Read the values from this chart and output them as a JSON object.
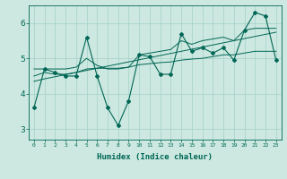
{
  "xlabel": "Humidex (Indice chaleur)",
  "bg_color": "#cce8e0",
  "grid_color": "#aad4cc",
  "line_color": "#006655",
  "x_values": [
    0,
    1,
    2,
    3,
    4,
    5,
    6,
    7,
    8,
    9,
    10,
    11,
    12,
    13,
    14,
    15,
    16,
    17,
    18,
    19,
    20,
    21,
    22,
    23
  ],
  "main_line": [
    3.6,
    4.7,
    4.6,
    4.5,
    4.5,
    5.6,
    4.5,
    3.6,
    3.1,
    3.8,
    5.1,
    5.05,
    4.55,
    4.55,
    5.7,
    5.2,
    5.3,
    5.15,
    5.3,
    4.95,
    5.8,
    6.3,
    6.2,
    4.95
  ],
  "upper_band": [
    4.7,
    4.7,
    4.7,
    4.7,
    4.75,
    5.0,
    4.8,
    4.7,
    4.7,
    4.75,
    5.1,
    5.15,
    5.2,
    5.25,
    5.5,
    5.4,
    5.5,
    5.55,
    5.6,
    5.5,
    5.8,
    5.85,
    5.85,
    5.85
  ],
  "lower_band": [
    4.5,
    4.6,
    4.55,
    4.55,
    4.6,
    4.7,
    4.72,
    4.72,
    4.72,
    4.75,
    4.82,
    4.85,
    4.88,
    4.9,
    4.95,
    4.98,
    5.0,
    5.05,
    5.1,
    5.1,
    5.15,
    5.2,
    5.2,
    5.2
  ],
  "regression": [
    4.35,
    4.42,
    4.48,
    4.54,
    4.6,
    4.66,
    4.72,
    4.78,
    4.84,
    4.9,
    4.96,
    5.02,
    5.08,
    5.14,
    5.2,
    5.26,
    5.32,
    5.38,
    5.44,
    5.5,
    5.56,
    5.62,
    5.68,
    5.74
  ],
  "ylim": [
    2.7,
    6.5
  ],
  "yticks": [
    3,
    4,
    5,
    6
  ],
  "xlim": [
    -0.5,
    23.5
  ]
}
